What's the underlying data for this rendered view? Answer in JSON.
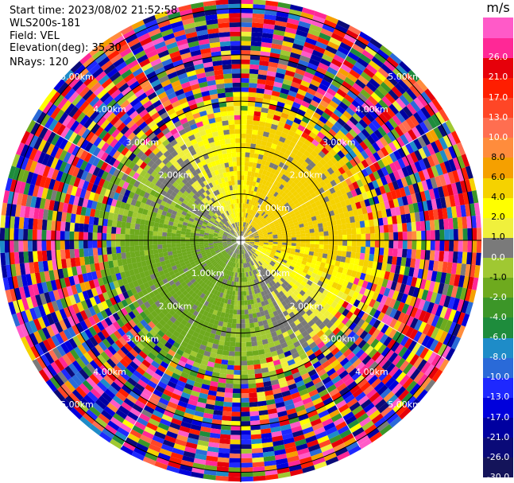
{
  "header": {
    "start_time": "Start time: 2023/08/02 21:52:58",
    "instrument": "WLS200s-181",
    "field": "Field: VEL",
    "elevation": "Elevation(deg): 35.30",
    "nrays": "NRays: 120"
  },
  "chart_data": {
    "type": "heatmap",
    "projection": "polar",
    "n_rays": 120,
    "unit": "m/s",
    "range_rings_km": [
      {
        "range": 1.0,
        "label": "1.00km"
      },
      {
        "range": 2.0,
        "label": "2.00km"
      },
      {
        "range": 3.0,
        "label": "3.00km"
      },
      {
        "range": 4.0,
        "label": "4.00km"
      },
      {
        "range": 5.0,
        "label": "5.00km"
      }
    ],
    "max_range_km": 5.15,
    "colorbar": [
      {
        "label": "-30.0",
        "color": "#14145a"
      },
      {
        "label": "-26.0",
        "color": "#0a0a78"
      },
      {
        "label": "-21.0",
        "color": "#0000a0"
      },
      {
        "label": "-17.0",
        "color": "#0000dc"
      },
      {
        "label": "-13.0",
        "color": "#1e28ff"
      },
      {
        "label": "-10.0",
        "color": "#2a6ad8"
      },
      {
        "label": "-8.0",
        "color": "#1e8cc8"
      },
      {
        "label": "-6.0",
        "color": "#1e8c3c"
      },
      {
        "label": "-4.0",
        "color": "#3c9628"
      },
      {
        "label": "-2.0",
        "color": "#6eaa1e"
      },
      {
        "label": "-1.0",
        "color": "#a0c832"
      },
      {
        "label": "0.0",
        "color": "#7a7a7a"
      },
      {
        "label": "1.0",
        "color": "#f0f03c"
      },
      {
        "label": "2.0",
        "color": "#ffff00"
      },
      {
        "label": "4.0",
        "color": "#f5d200"
      },
      {
        "label": "6.0",
        "color": "#f5a000"
      },
      {
        "label": "8.0",
        "color": "#ff8c3c"
      },
      {
        "label": "10.0",
        "color": "#ff6e50"
      },
      {
        "label": "13.0",
        "color": "#ff4626"
      },
      {
        "label": "17.0",
        "color": "#ff1e00"
      },
      {
        "label": "21.0",
        "color": "#e6000a"
      },
      {
        "label": "26.0",
        "color": "#ff2896"
      },
      {
        "label": "",
        "color": "#ff5ac8"
      }
    ],
    "velocity_pattern": {
      "description_values": "near-field radial velocity: positive (yellow/orange) to north-east, negative (green/blue) to south-west, noisy beyond ~2.5 km"
    }
  }
}
